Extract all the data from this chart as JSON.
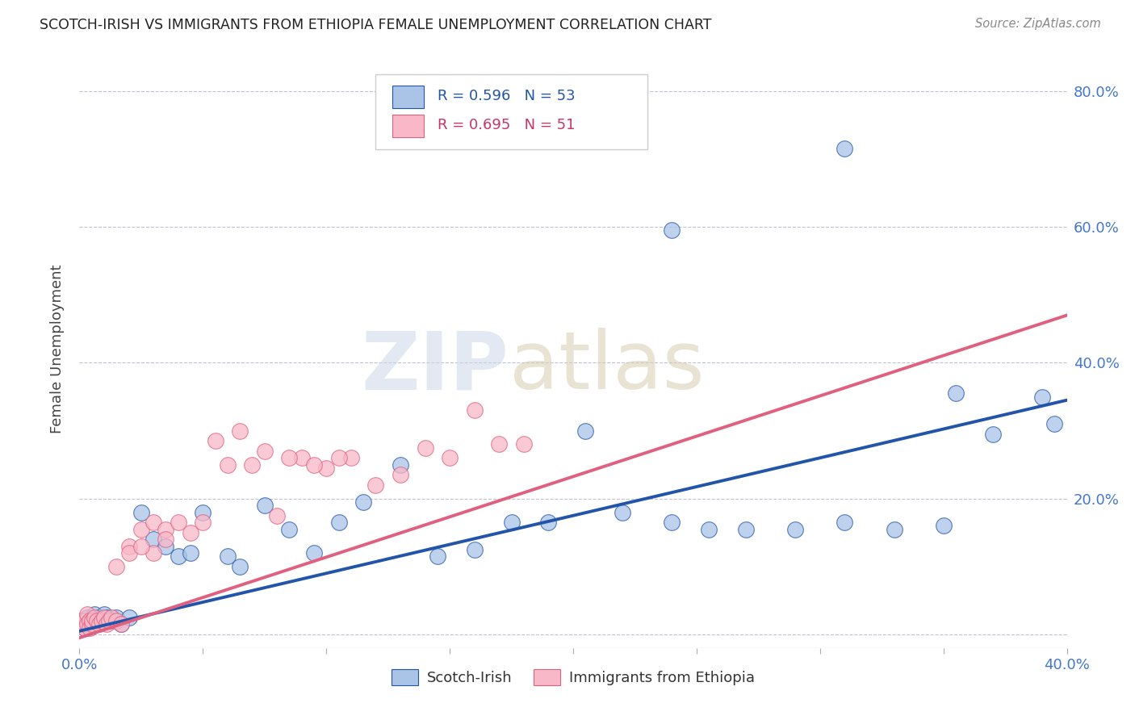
{
  "title": "SCOTCH-IRISH VS IMMIGRANTS FROM ETHIOPIA FEMALE UNEMPLOYMENT CORRELATION CHART",
  "source": "Source: ZipAtlas.com",
  "ylabel": "Female Unemployment",
  "right_yticks": [
    "20.0%",
    "40.0%",
    "60.0%",
    "80.0%"
  ],
  "right_ytick_vals": [
    0.2,
    0.4,
    0.6,
    0.8
  ],
  "xlim": [
    0.0,
    0.4
  ],
  "ylim": [
    -0.02,
    0.86
  ],
  "legend1_R": "0.596",
  "legend1_N": "53",
  "legend2_R": "0.695",
  "legend2_N": "51",
  "blue_scatter_color": "#aac4e8",
  "pink_scatter_color": "#f8b8c8",
  "blue_line_color": "#2255aa",
  "pink_line_color": "#e06080",
  "watermark_zip_color": "#ccd8e8",
  "watermark_atlas_color": "#d8cdb0",
  "scotch_irish_x": [
    0.001,
    0.001,
    0.002,
    0.002,
    0.003,
    0.003,
    0.004,
    0.004,
    0.005,
    0.006,
    0.007,
    0.008,
    0.009,
    0.01,
    0.011,
    0.012,
    0.013,
    0.015,
    0.017,
    0.02,
    0.025,
    0.03,
    0.035,
    0.04,
    0.045,
    0.05,
    0.06,
    0.065,
    0.075,
    0.085,
    0.095,
    0.105,
    0.115,
    0.13,
    0.145,
    0.16,
    0.175,
    0.19,
    0.205,
    0.22,
    0.24,
    0.255,
    0.27,
    0.29,
    0.31,
    0.33,
    0.35,
    0.37,
    0.39,
    0.395,
    0.24,
    0.31,
    0.355
  ],
  "scotch_irish_y": [
    0.02,
    0.015,
    0.02,
    0.01,
    0.025,
    0.018,
    0.012,
    0.02,
    0.015,
    0.03,
    0.02,
    0.025,
    0.02,
    0.03,
    0.025,
    0.02,
    0.02,
    0.025,
    0.015,
    0.025,
    0.18,
    0.14,
    0.13,
    0.115,
    0.12,
    0.18,
    0.115,
    0.1,
    0.19,
    0.155,
    0.12,
    0.165,
    0.195,
    0.25,
    0.115,
    0.125,
    0.165,
    0.165,
    0.3,
    0.18,
    0.165,
    0.155,
    0.155,
    0.155,
    0.165,
    0.155,
    0.16,
    0.295,
    0.35,
    0.31,
    0.595,
    0.715,
    0.355
  ],
  "ethiopia_x": [
    0.001,
    0.001,
    0.002,
    0.002,
    0.003,
    0.003,
    0.004,
    0.004,
    0.005,
    0.005,
    0.006,
    0.007,
    0.008,
    0.009,
    0.01,
    0.011,
    0.012,
    0.013,
    0.015,
    0.017,
    0.02,
    0.025,
    0.03,
    0.035,
    0.04,
    0.045,
    0.05,
    0.06,
    0.07,
    0.08,
    0.09,
    0.1,
    0.11,
    0.12,
    0.13,
    0.14,
    0.15,
    0.16,
    0.17,
    0.18,
    0.055,
    0.065,
    0.075,
    0.085,
    0.095,
    0.105,
    0.03,
    0.035,
    0.02,
    0.015,
    0.025
  ],
  "ethiopia_y": [
    0.02,
    0.015,
    0.02,
    0.01,
    0.03,
    0.015,
    0.02,
    0.01,
    0.015,
    0.02,
    0.025,
    0.02,
    0.015,
    0.02,
    0.025,
    0.015,
    0.02,
    0.025,
    0.02,
    0.015,
    0.13,
    0.155,
    0.165,
    0.155,
    0.165,
    0.15,
    0.165,
    0.25,
    0.25,
    0.175,
    0.26,
    0.245,
    0.26,
    0.22,
    0.235,
    0.275,
    0.26,
    0.33,
    0.28,
    0.28,
    0.285,
    0.3,
    0.27,
    0.26,
    0.25,
    0.26,
    0.12,
    0.14,
    0.12,
    0.1,
    0.13
  ],
  "blue_line_x0": 0.0,
  "blue_line_x1": 0.4,
  "blue_line_y0": 0.005,
  "blue_line_y1": 0.345,
  "pink_line_x0": 0.0,
  "pink_line_x1": 0.4,
  "pink_line_y0": -0.005,
  "pink_line_y1": 0.47
}
